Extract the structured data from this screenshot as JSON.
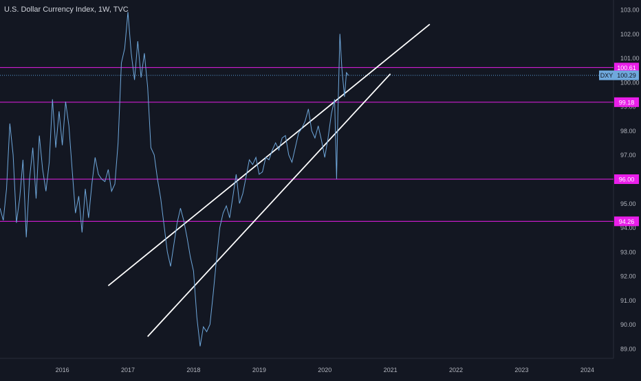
{
  "chart_data": {
    "type": "line",
    "title": "U.S. Dollar Currency Index, 1W, TVC",
    "symbol": "DXY",
    "last_value": "100.29",
    "ylim": [
      88.6,
      103.4
    ],
    "y_ticks": [
      "89.00",
      "90.00",
      "91.00",
      "92.00",
      "93.00",
      "94.00",
      "95.00",
      "96.00",
      "97.00",
      "98.00",
      "99.00",
      "100.00",
      "101.00",
      "102.00",
      "103.00"
    ],
    "x_range": [
      2015.05,
      2024.4
    ],
    "x_ticks": [
      {
        "label": "2016",
        "x": 2016.0
      },
      {
        "label": "2017",
        "x": 2017.0
      },
      {
        "label": "2018",
        "x": 2018.0
      },
      {
        "label": "2019",
        "x": 2019.0
      },
      {
        "label": "2020",
        "x": 2020.0
      },
      {
        "label": "2021",
        "x": 2021.0
      },
      {
        "label": "2022",
        "x": 2022.0
      },
      {
        "label": "2023",
        "x": 2023.0
      },
      {
        "label": "2024",
        "x": 2024.0
      }
    ],
    "horizontal_levels": [
      {
        "label": "100.61",
        "value": 100.61
      },
      {
        "label": "99.18",
        "value": 99.18
      },
      {
        "label": "96.00",
        "value": 96.0
      },
      {
        "label": "94.26",
        "value": 94.26
      }
    ],
    "trend_lines": [
      {
        "from": [
          2016.7,
          91.6
        ],
        "to": [
          2021.6,
          102.4
        ]
      },
      {
        "from": [
          2017.3,
          89.5
        ],
        "to": [
          2021.0,
          100.35
        ]
      }
    ],
    "series": [
      {
        "points": [
          [
            2015.05,
            94.8
          ],
          [
            2015.1,
            94.3
          ],
          [
            2015.15,
            95.6
          ],
          [
            2015.2,
            98.3
          ],
          [
            2015.25,
            97.0
          ],
          [
            2015.3,
            94.2
          ],
          [
            2015.35,
            95.2
          ],
          [
            2015.4,
            96.8
          ],
          [
            2015.45,
            93.6
          ],
          [
            2015.5,
            96.0
          ],
          [
            2015.55,
            97.3
          ],
          [
            2015.6,
            95.2
          ],
          [
            2015.65,
            97.8
          ],
          [
            2015.7,
            96.4
          ],
          [
            2015.75,
            95.5
          ],
          [
            2015.8,
            96.7
          ],
          [
            2015.85,
            99.3
          ],
          [
            2015.9,
            97.3
          ],
          [
            2015.95,
            98.8
          ],
          [
            2016.0,
            97.4
          ],
          [
            2016.05,
            99.2
          ],
          [
            2016.1,
            98.2
          ],
          [
            2016.15,
            96.4
          ],
          [
            2016.2,
            94.6
          ],
          [
            2016.25,
            95.3
          ],
          [
            2016.3,
            93.8
          ],
          [
            2016.35,
            95.6
          ],
          [
            2016.4,
            94.4
          ],
          [
            2016.45,
            95.8
          ],
          [
            2016.5,
            96.9
          ],
          [
            2016.55,
            96.2
          ],
          [
            2016.6,
            96.0
          ],
          [
            2016.65,
            95.9
          ],
          [
            2016.7,
            96.4
          ],
          [
            2016.75,
            95.5
          ],
          [
            2016.8,
            95.8
          ],
          [
            2016.85,
            97.5
          ],
          [
            2016.9,
            100.8
          ],
          [
            2016.95,
            101.4
          ],
          [
            2017.0,
            102.9
          ],
          [
            2017.05,
            101.2
          ],
          [
            2017.1,
            100.1
          ],
          [
            2017.15,
            101.7
          ],
          [
            2017.2,
            100.2
          ],
          [
            2017.25,
            101.2
          ],
          [
            2017.3,
            99.8
          ],
          [
            2017.35,
            97.3
          ],
          [
            2017.4,
            97.0
          ],
          [
            2017.45,
            96.0
          ],
          [
            2017.5,
            95.2
          ],
          [
            2017.55,
            94.1
          ],
          [
            2017.6,
            93.0
          ],
          [
            2017.65,
            92.4
          ],
          [
            2017.7,
            93.3
          ],
          [
            2017.75,
            94.2
          ],
          [
            2017.8,
            94.8
          ],
          [
            2017.85,
            94.3
          ],
          [
            2017.9,
            93.6
          ],
          [
            2017.95,
            92.8
          ],
          [
            2018.0,
            92.2
          ],
          [
            2018.05,
            90.3
          ],
          [
            2018.1,
            89.1
          ],
          [
            2018.15,
            89.9
          ],
          [
            2018.2,
            89.7
          ],
          [
            2018.25,
            90.0
          ],
          [
            2018.3,
            91.3
          ],
          [
            2018.35,
            92.7
          ],
          [
            2018.4,
            94.0
          ],
          [
            2018.45,
            94.6
          ],
          [
            2018.5,
            94.9
          ],
          [
            2018.55,
            94.4
          ],
          [
            2018.6,
            95.3
          ],
          [
            2018.65,
            96.2
          ],
          [
            2018.7,
            95.0
          ],
          [
            2018.75,
            95.4
          ],
          [
            2018.8,
            96.1
          ],
          [
            2018.85,
            96.8
          ],
          [
            2018.9,
            96.6
          ],
          [
            2018.95,
            96.9
          ],
          [
            2019.0,
            96.2
          ],
          [
            2019.05,
            96.3
          ],
          [
            2019.1,
            96.9
          ],
          [
            2019.15,
            96.8
          ],
          [
            2019.2,
            97.2
          ],
          [
            2019.25,
            97.5
          ],
          [
            2019.3,
            97.2
          ],
          [
            2019.35,
            97.7
          ],
          [
            2019.4,
            97.8
          ],
          [
            2019.45,
            97.0
          ],
          [
            2019.5,
            96.7
          ],
          [
            2019.55,
            97.3
          ],
          [
            2019.6,
            97.9
          ],
          [
            2019.65,
            98.1
          ],
          [
            2019.7,
            98.4
          ],
          [
            2019.75,
            98.9
          ],
          [
            2019.8,
            98.0
          ],
          [
            2019.85,
            97.7
          ],
          [
            2019.9,
            98.2
          ],
          [
            2019.95,
            97.6
          ],
          [
            2020.0,
            96.9
          ],
          [
            2020.05,
            97.7
          ],
          [
            2020.1,
            98.7
          ],
          [
            2020.15,
            99.3
          ],
          [
            2020.18,
            96.0
          ],
          [
            2020.2,
            98.7
          ],
          [
            2020.23,
            102.0
          ],
          [
            2020.26,
            100.6
          ],
          [
            2020.3,
            99.4
          ],
          [
            2020.33,
            100.4
          ],
          [
            2020.36,
            100.29
          ]
        ]
      }
    ]
  }
}
